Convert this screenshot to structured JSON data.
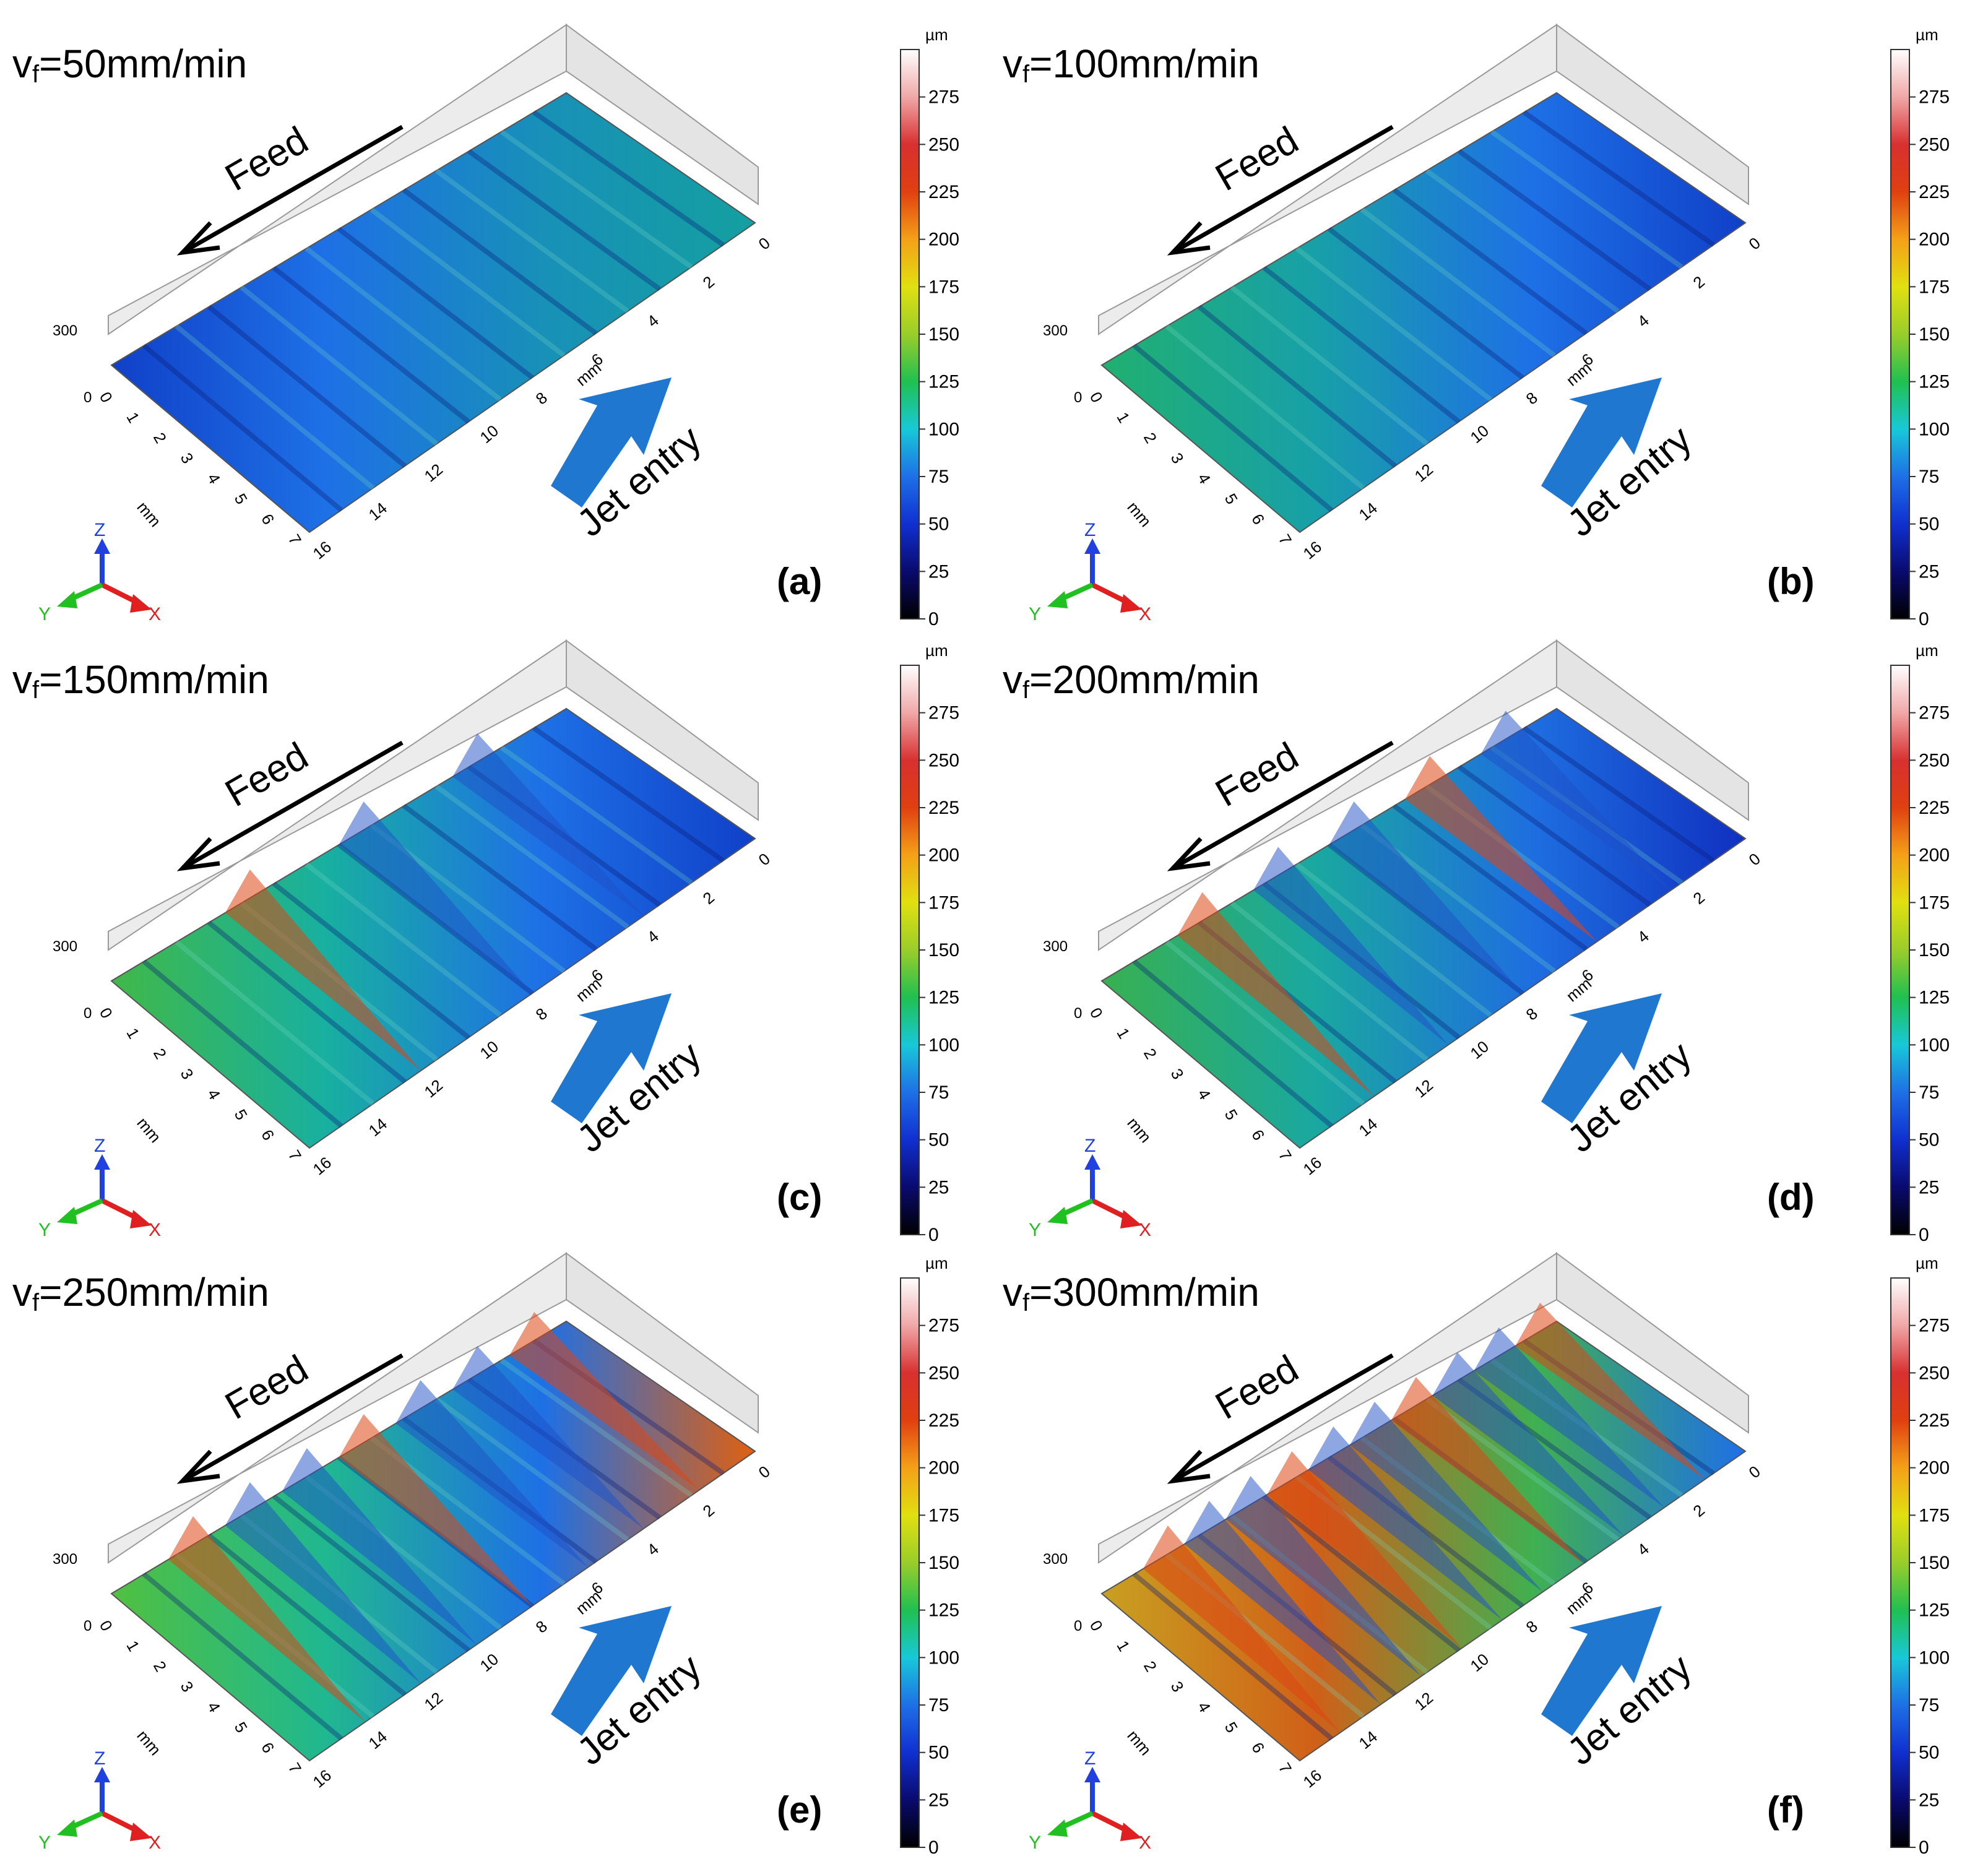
{
  "figure": {
    "unit": "µm",
    "colorbar_ticks": [
      "275",
      "250",
      "225",
      "200",
      "175",
      "150",
      "125",
      "100",
      "75",
      "50",
      "25",
      "0"
    ],
    "colormap": [
      "#000000",
      "#0a0a6e",
      "#1030d0",
      "#1e70e6",
      "#18c8d8",
      "#20c050",
      "#9acd2a",
      "#e0e010",
      "#f4a018",
      "#e04010",
      "#d83030",
      "#f0a8a8",
      "#ffffff"
    ],
    "axis_labels": {
      "mm": "mm",
      "x": "X",
      "y": "Y",
      "z": "Z"
    },
    "x_axis_ticks": [
      "0",
      "2",
      "4",
      "6",
      "8",
      "10",
      "12",
      "14",
      "16"
    ],
    "y_axis_ticks": [
      "0",
      "1",
      "2",
      "3",
      "4",
      "5",
      "6",
      "7"
    ],
    "z_axis_ticks": [
      "300",
      "0"
    ],
    "annotations": {
      "feed": "Feed",
      "jet_entry": "Jet entry"
    },
    "colors": {
      "arrow_blue": "#1f77d0",
      "axis_red": "#e02020",
      "axis_green": "#20c020",
      "axis_blue": "#2040e0"
    },
    "panels": [
      {
        "id": "a",
        "label": "(a)",
        "title_v": "v",
        "title_sub": "f",
        "title_rest": "=50mm/min",
        "surface_colors": [
          "#1040c8",
          "#1e70e6",
          "#1890b8",
          "#14a0a0"
        ],
        "peak_count": 0
      },
      {
        "id": "b",
        "label": "(b)",
        "title_v": "v",
        "title_sub": "f",
        "title_rest": "=100mm/min",
        "surface_colors": [
          "#20b070",
          "#18a0a8",
          "#1e70e6",
          "#1040c8"
        ],
        "peak_count": 0
      },
      {
        "id": "c",
        "label": "(c)",
        "title_v": "v",
        "title_sub": "f",
        "title_rest": "=150mm/min",
        "surface_colors": [
          "#40b848",
          "#18b0a0",
          "#1e70e6",
          "#1040c8"
        ],
        "peak_count": 3
      },
      {
        "id": "d",
        "label": "(d)",
        "title_v": "v",
        "title_sub": "f",
        "title_rest": "=200mm/min",
        "surface_colors": [
          "#38b050",
          "#1aa8a0",
          "#1e6ee0",
          "#1030c0"
        ],
        "peak_count": 5
      },
      {
        "id": "e",
        "label": "(e)",
        "title_v": "v",
        "title_sub": "f",
        "title_rest": "=250mm/min",
        "surface_colors": [
          "#50c040",
          "#20b890",
          "#1e70e6",
          "#e06010"
        ],
        "peak_count": 7
      },
      {
        "id": "f",
        "label": "(f)",
        "title_v": "v",
        "title_sub": "f",
        "title_rest": "=300mm/min",
        "surface_colors": [
          "#c8a020",
          "#d06018",
          "#40b050",
          "#1e70e6"
        ],
        "peak_count": 10
      }
    ]
  }
}
